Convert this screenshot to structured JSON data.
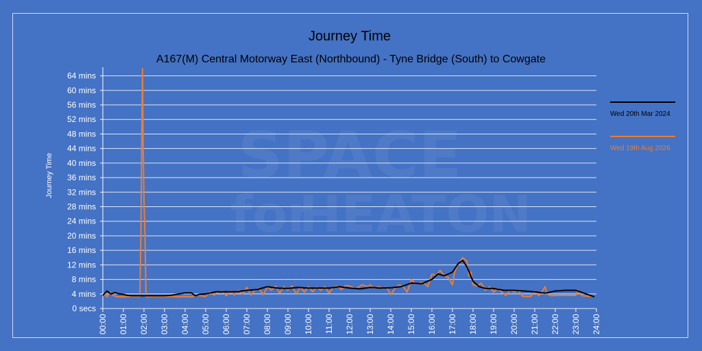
{
  "chart_data": {
    "type": "line",
    "title": "Journey Time",
    "subtitle": "A167(M) Central Motorway East (Northbound) - Tyne Bridge (South) to Cowgate",
    "ylabel": "Journey Time",
    "xlabel": "",
    "x_ticks": [
      "00:00",
      "01:00",
      "02:00",
      "03:00",
      "04:00",
      "05:00",
      "06:00",
      "07:00",
      "08:00",
      "09:00",
      "10:00",
      "11:00",
      "12:00",
      "13:00",
      "14:00",
      "15:00",
      "16:00",
      "17:00",
      "18:00",
      "19:00",
      "20:00",
      "21:00",
      "22:00",
      "23:00",
      "24:00"
    ],
    "y_ticks": [
      "0 secs",
      "4 mins",
      "8 mins",
      "12 mins",
      "16 mins",
      "20 mins",
      "24 mins",
      "28 mins",
      "32 mins",
      "36 mins",
      "40 mins",
      "44 mins",
      "48 mins",
      "52 mins",
      "56 mins",
      "60 mins",
      "64 mins"
    ],
    "y_unit": "minutes",
    "ylim": [
      0,
      66
    ],
    "xlim_hours": [
      0,
      24
    ],
    "grid": true,
    "legend_position": "right",
    "series": [
      {
        "name": "Wed 20th Mar 2024",
        "color": "#000000",
        "points": [
          [
            0,
            3.6
          ],
          [
            0.2,
            4.8
          ],
          [
            0.4,
            4.0
          ],
          [
            0.6,
            4.4
          ],
          [
            0.8,
            4.0
          ],
          [
            1.0,
            3.9
          ],
          [
            1.2,
            3.6
          ],
          [
            1.4,
            3.5
          ],
          [
            1.6,
            3.5
          ],
          [
            2.0,
            3.5
          ],
          [
            2.5,
            3.5
          ],
          [
            3.0,
            3.5
          ],
          [
            3.3,
            3.6
          ],
          [
            3.6,
            3.9
          ],
          [
            4.0,
            4.3
          ],
          [
            4.3,
            4.3
          ],
          [
            4.5,
            3.5
          ],
          [
            4.7,
            3.9
          ],
          [
            5.0,
            4.0
          ],
          [
            5.5,
            4.6
          ],
          [
            6.0,
            4.6
          ],
          [
            6.5,
            4.6
          ],
          [
            7.0,
            5.0
          ],
          [
            7.5,
            5.2
          ],
          [
            8.0,
            6.0
          ],
          [
            8.5,
            5.6
          ],
          [
            9.0,
            5.5
          ],
          [
            9.5,
            5.8
          ],
          [
            10.0,
            5.6
          ],
          [
            10.5,
            5.6
          ],
          [
            11.0,
            5.6
          ],
          [
            11.5,
            6.0
          ],
          [
            12.0,
            5.6
          ],
          [
            12.5,
            5.4
          ],
          [
            13.0,
            5.8
          ],
          [
            13.5,
            5.6
          ],
          [
            14.0,
            5.7
          ],
          [
            14.5,
            6.0
          ],
          [
            15.0,
            7.0
          ],
          [
            15.5,
            6.8
          ],
          [
            16.0,
            8.0
          ],
          [
            16.3,
            9.5
          ],
          [
            16.6,
            9.0
          ],
          [
            17.0,
            10.0
          ],
          [
            17.3,
            12.5
          ],
          [
            17.5,
            13.2
          ],
          [
            17.7,
            11.5
          ],
          [
            18.0,
            7.5
          ],
          [
            18.3,
            6.0
          ],
          [
            18.6,
            5.5
          ],
          [
            19.0,
            5.5
          ],
          [
            19.5,
            5.0
          ],
          [
            20.0,
            5.0
          ],
          [
            20.5,
            4.8
          ],
          [
            21.0,
            4.6
          ],
          [
            21.5,
            4.2
          ],
          [
            22.0,
            4.8
          ],
          [
            22.5,
            5.0
          ],
          [
            23.0,
            5.0
          ],
          [
            23.3,
            4.4
          ],
          [
            23.6,
            3.8
          ],
          [
            23.9,
            3.2
          ]
        ]
      },
      {
        "name": "Wed 19th Aug 2026",
        "color": "#ed7d31",
        "points": [
          [
            0,
            3.2
          ],
          [
            0.1,
            4.0
          ],
          [
            0.2,
            3.2
          ],
          [
            0.35,
            4.5
          ],
          [
            0.5,
            3.6
          ],
          [
            0.7,
            3.2
          ],
          [
            1.0,
            3.2
          ],
          [
            1.3,
            3.3
          ],
          [
            1.6,
            3.3
          ],
          [
            1.8,
            3.3
          ],
          [
            1.85,
            20
          ],
          [
            1.9,
            52
          ],
          [
            1.93,
            66
          ],
          [
            1.96,
            45
          ],
          [
            2.0,
            30
          ],
          [
            2.05,
            20
          ],
          [
            2.1,
            3.2
          ],
          [
            2.5,
            3.3
          ],
          [
            3.0,
            3.3
          ],
          [
            3.3,
            3.3
          ],
          [
            3.5,
            3.3
          ],
          [
            3.7,
            3.2
          ],
          [
            4.0,
            3.3
          ],
          [
            4.3,
            3.2
          ],
          [
            4.6,
            3.6
          ],
          [
            5.0,
            3.3
          ],
          [
            5.2,
            4.5
          ],
          [
            5.4,
            3.7
          ],
          [
            5.6,
            4.5
          ],
          [
            5.8,
            4.8
          ],
          [
            6.0,
            3.5
          ],
          [
            6.2,
            4.8
          ],
          [
            6.4,
            3.7
          ],
          [
            6.6,
            5.0
          ],
          [
            6.8,
            4.0
          ],
          [
            7.0,
            5.8
          ],
          [
            7.2,
            3.7
          ],
          [
            7.4,
            5.0
          ],
          [
            7.6,
            5.5
          ],
          [
            7.8,
            3.8
          ],
          [
            8.0,
            6.0
          ],
          [
            8.2,
            5.0
          ],
          [
            8.4,
            6.2
          ],
          [
            8.6,
            4.2
          ],
          [
            8.8,
            6.0
          ],
          [
            9.0,
            5.0
          ],
          [
            9.2,
            6.2
          ],
          [
            9.4,
            4.0
          ],
          [
            9.6,
            5.8
          ],
          [
            9.8,
            4.5
          ],
          [
            10.0,
            6.0
          ],
          [
            10.2,
            4.6
          ],
          [
            10.4,
            5.8
          ],
          [
            10.6,
            5.0
          ],
          [
            10.8,
            6.0
          ],
          [
            11.0,
            4.2
          ],
          [
            11.2,
            5.8
          ],
          [
            11.4,
            6.2
          ],
          [
            11.6,
            5.2
          ],
          [
            11.8,
            6.3
          ],
          [
            12.0,
            6.2
          ],
          [
            12.3,
            5.4
          ],
          [
            12.6,
            6.5
          ],
          [
            12.9,
            6.0
          ],
          [
            13.0,
            6.5
          ],
          [
            13.2,
            5.5
          ],
          [
            13.4,
            6.0
          ],
          [
            13.6,
            5.5
          ],
          [
            13.8,
            5.8
          ],
          [
            14.0,
            3.8
          ],
          [
            14.2,
            5.5
          ],
          [
            14.4,
            6.5
          ],
          [
            14.6,
            6.0
          ],
          [
            14.8,
            4.5
          ],
          [
            15.0,
            8.0
          ],
          [
            15.2,
            6.8
          ],
          [
            15.4,
            7.0
          ],
          [
            15.6,
            7.2
          ],
          [
            15.8,
            6.0
          ],
          [
            16.0,
            9.5
          ],
          [
            16.2,
            9.0
          ],
          [
            16.4,
            10.5
          ],
          [
            16.6,
            9.0
          ],
          [
            16.8,
            8.5
          ],
          [
            17.0,
            6.5
          ],
          [
            17.1,
            10.0
          ],
          [
            17.3,
            12.5
          ],
          [
            17.5,
            14.0
          ],
          [
            17.7,
            13.0
          ],
          [
            17.8,
            9.0
          ],
          [
            17.9,
            10.0
          ],
          [
            18.0,
            6.5
          ],
          [
            18.2,
            6.2
          ],
          [
            18.4,
            7.0
          ],
          [
            18.6,
            5.0
          ],
          [
            18.8,
            6.0
          ],
          [
            19.0,
            4.5
          ],
          [
            19.2,
            5.5
          ],
          [
            19.4,
            4.5
          ],
          [
            19.6,
            3.6
          ],
          [
            19.8,
            5.0
          ],
          [
            20.0,
            4.5
          ],
          [
            20.2,
            5.0
          ],
          [
            20.4,
            3.4
          ],
          [
            20.6,
            3.3
          ],
          [
            20.8,
            3.3
          ],
          [
            21.0,
            4.8
          ],
          [
            21.2,
            3.5
          ],
          [
            21.4,
            5.0
          ],
          [
            21.5,
            6.0
          ],
          [
            21.6,
            4.0
          ],
          [
            21.8,
            3.5
          ],
          [
            22.0,
            3.6
          ],
          [
            22.5,
            3.6
          ],
          [
            23.0,
            3.6
          ],
          [
            23.1,
            5.0
          ],
          [
            23.3,
            3.5
          ],
          [
            23.6,
            3.4
          ],
          [
            23.9,
            3.4
          ]
        ]
      }
    ]
  },
  "watermark": {
    "line1": "SPACE",
    "line2_light": "for",
    "line2_bold": "HEATON"
  }
}
